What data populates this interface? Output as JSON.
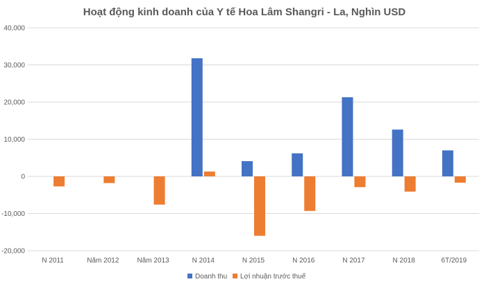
{
  "chart_data": {
    "type": "bar",
    "title": "Hoạt động kinh doanh của Y tế Hoa Lâm Shangri - La, Nghìn USD",
    "xlabel": "",
    "ylabel": "",
    "ylim": [
      -20000,
      40000
    ],
    "yticks": [
      40000,
      30000,
      20000,
      10000,
      0,
      -10000,
      -20000
    ],
    "ytick_labels": [
      "40,000",
      "30,000",
      "20,000",
      "10,000",
      "0",
      "-10,000",
      "-20,000"
    ],
    "grid": true,
    "legend_position": "bottom",
    "categories": [
      "N 2011",
      "Năm 2012",
      "Năm 2013",
      "N 2014",
      "N 2015",
      "N 2016",
      "N 2017",
      "N 2018",
      "6T/2019"
    ],
    "series": [
      {
        "name": "Doanh thu",
        "color": "#4472c4",
        "values": [
          0,
          0,
          0,
          31800,
          4100,
          6200,
          21300,
          12600,
          7000
        ]
      },
      {
        "name": "Lợi nhuận trước thuế",
        "color": "#ed7d31",
        "values": [
          -2700,
          -1800,
          -7600,
          1300,
          -16000,
          -9300,
          -2900,
          -4100,
          -1700
        ]
      }
    ]
  }
}
